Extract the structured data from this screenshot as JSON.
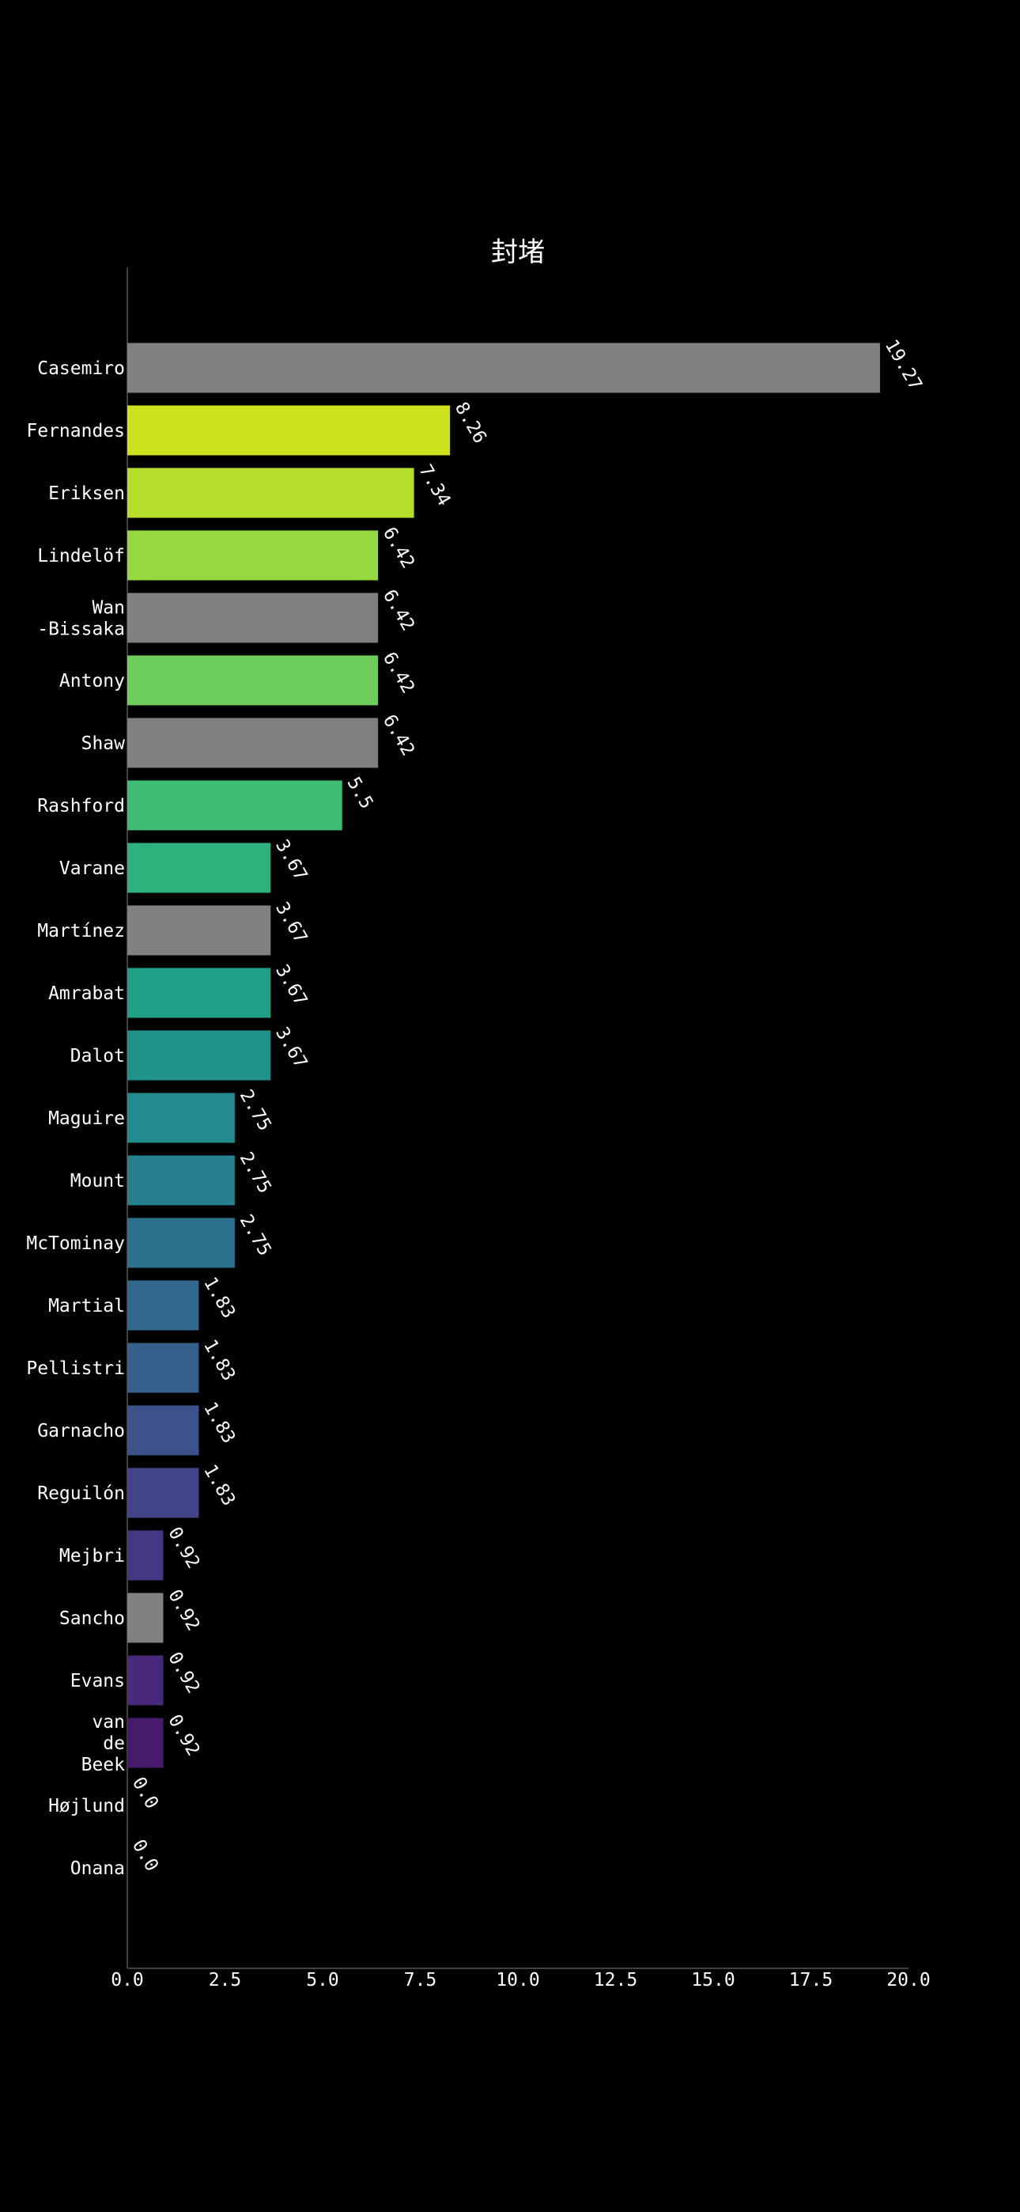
{
  "chart_data": {
    "type": "bar",
    "orientation": "horizontal",
    "title": "封堵",
    "xlabel": "",
    "ylabel": "",
    "xlim": [
      0,
      20
    ],
    "xticks": [
      "0.0",
      "2.5",
      "5.0",
      "7.5",
      "10.0",
      "12.5",
      "15.0",
      "17.5",
      "20.0"
    ],
    "grid": false,
    "categories": [
      "Casemiro",
      "Fernandes",
      "Eriksen",
      "Lindelöf",
      "Wan\n-Bissaka",
      "Antony",
      "Shaw",
      "Rashford",
      "Varane",
      "Martínez",
      "Amrabat",
      "Dalot",
      "Maguire",
      "Mount",
      "McTominay",
      "Martial",
      "Pellistri",
      "Garnacho",
      "Reguilón",
      "Mejbri",
      "Sancho",
      "Evans",
      "van\nde\nBeek",
      "Højlund",
      "Onana"
    ],
    "values": [
      19.27,
      8.26,
      7.34,
      6.42,
      6.42,
      6.42,
      6.42,
      5.5,
      3.67,
      3.67,
      3.67,
      3.67,
      2.75,
      2.75,
      2.75,
      1.83,
      1.83,
      1.83,
      1.83,
      0.92,
      0.92,
      0.92,
      0.92,
      0.0,
      0.0
    ],
    "value_labels": [
      "19.27",
      "8.26",
      "7.34",
      "6.42",
      "6.42",
      "6.42",
      "6.42",
      "5.5",
      "3.67",
      "3.67",
      "3.67",
      "3.67",
      "2.75",
      "2.75",
      "2.75",
      "1.83",
      "1.83",
      "1.83",
      "1.83",
      "0.92",
      "0.92",
      "0.92",
      "0.92",
      "0.0",
      "0.0"
    ],
    "colors": [
      "#808080",
      "#cde11d",
      "#b5de2b",
      "#95d840",
      "#808080",
      "#6ccd5a",
      "#808080",
      "#3fbc73",
      "#2db27d",
      "#808080",
      "#1fa188",
      "#20928c",
      "#238a8d",
      "#27808e",
      "#2c728e",
      "#31688e",
      "#355f8d",
      "#3b528b",
      "#414487",
      "#453781",
      "#808080",
      "#482878",
      "#481a6c",
      "#440154",
      "#440154"
    ]
  }
}
